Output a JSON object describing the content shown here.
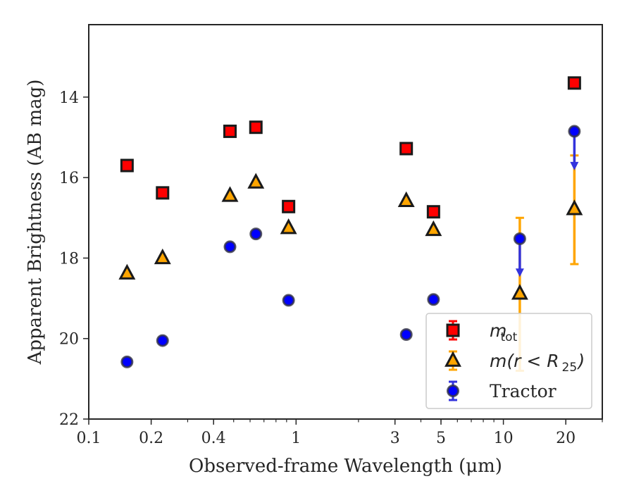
{
  "chart_data": {
    "type": "scatter",
    "xlabel": "Observed-frame Wavelength (μm)",
    "ylabel": "Apparent Brightness (AB mag)",
    "xscale": "log",
    "xlim": [
      0.1,
      30
    ],
    "ylim": [
      22,
      12.2
    ],
    "y_inverted": true,
    "x_ticks": [
      0.1,
      0.2,
      0.4,
      1,
      3,
      5,
      10,
      20
    ],
    "x_tick_labels": [
      "0.1",
      "0.2",
      "0.4",
      "1",
      "3",
      "5",
      "10",
      "20"
    ],
    "y_ticks": [
      14,
      16,
      18,
      20,
      22
    ],
    "y_tick_labels": [
      "14",
      "16",
      "18",
      "20",
      "22"
    ],
    "legend_position": "lower-right",
    "series": [
      {
        "name": "m_tot",
        "legend_main": "m",
        "legend_sub": "tot",
        "marker": "square",
        "color": "#ff0000",
        "points": [
          {
            "x": 0.153,
            "y": 15.7
          },
          {
            "x": 0.227,
            "y": 16.38
          },
          {
            "x": 0.48,
            "y": 14.85
          },
          {
            "x": 0.64,
            "y": 14.75
          },
          {
            "x": 0.92,
            "y": 16.72
          },
          {
            "x": 3.4,
            "y": 15.28
          },
          {
            "x": 4.6,
            "y": 16.85
          },
          {
            "x": 22.0,
            "y": 13.65
          }
        ]
      },
      {
        "name": "m(r < R25)",
        "legend_main": "m(r < R",
        "legend_sub": "25",
        "legend_tail": ")",
        "marker": "triangle",
        "color": "#ffa500",
        "points": [
          {
            "x": 0.153,
            "y": 18.38
          },
          {
            "x": 0.227,
            "y": 18.0
          },
          {
            "x": 0.48,
            "y": 16.45
          },
          {
            "x": 0.64,
            "y": 16.12
          },
          {
            "x": 0.92,
            "y": 17.25
          },
          {
            "x": 3.4,
            "y": 16.58
          },
          {
            "x": 4.6,
            "y": 17.3
          },
          {
            "x": 12.0,
            "y": 18.88,
            "err": [
              17.0,
              20.8
            ]
          },
          {
            "x": 22.0,
            "y": 16.78,
            "err": [
              15.45,
              18.15
            ]
          }
        ]
      },
      {
        "name": "Tractor",
        "marker": "circle",
        "color": "#0000ff",
        "points": [
          {
            "x": 0.153,
            "y": 20.58
          },
          {
            "x": 0.227,
            "y": 20.05
          },
          {
            "x": 0.48,
            "y": 17.72
          },
          {
            "x": 0.64,
            "y": 17.4
          },
          {
            "x": 0.92,
            "y": 19.05
          },
          {
            "x": 3.4,
            "y": 19.9
          },
          {
            "x": 4.6,
            "y": 19.03
          },
          {
            "x": 12.0,
            "y": 17.52,
            "upper_limit_to": 18.4
          },
          {
            "x": 22.0,
            "y": 14.85,
            "upper_limit_to": 15.75
          }
        ]
      }
    ]
  }
}
